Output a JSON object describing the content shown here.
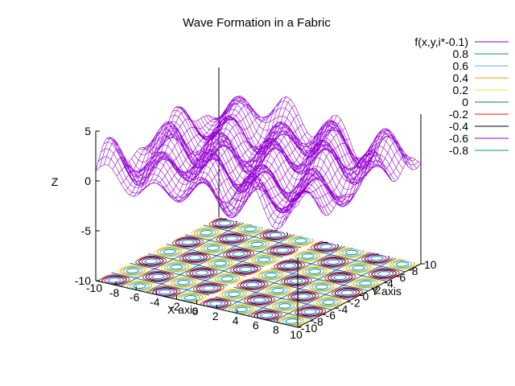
{
  "chart_data": {
    "type": "surface",
    "title": "Wave Formation in a Fabric",
    "xlabel": "X axis",
    "ylabel": "Y axis",
    "zlabel": "Z",
    "xlim": [
      -10,
      10
    ],
    "ylim": [
      -10,
      10
    ],
    "zlim": [
      -10,
      5
    ],
    "x_ticks": [
      "-10",
      "-8",
      "-6",
      "-4",
      "-2",
      "0",
      "2",
      "4",
      "6",
      "8",
      "10"
    ],
    "y_ticks": [
      "-10",
      "-8",
      "-6",
      "-4",
      "-2",
      "0",
      "2",
      "4",
      "6",
      "8",
      "10"
    ],
    "z_ticks": [
      "5",
      "0",
      "-5",
      "-10"
    ],
    "surface_color": "#9400d3",
    "series": [
      {
        "name": "f(x,y,i*-0.1)",
        "kind": "surface",
        "color": "#9400d3"
      }
    ],
    "contour_levels": [
      {
        "label": "0.8",
        "value": 0.8,
        "color": "#009e73"
      },
      {
        "label": "0.6",
        "value": 0.6,
        "color": "#56b4e9"
      },
      {
        "label": "0.4",
        "value": 0.4,
        "color": "#e69f00"
      },
      {
        "label": "0.2",
        "value": 0.2,
        "color": "#f0e442"
      },
      {
        "label": "0",
        "value": 0,
        "color": "#0072b2"
      },
      {
        "label": "-0.2",
        "value": -0.2,
        "color": "#e51e10"
      },
      {
        "label": "-0.4",
        "value": -0.4,
        "color": "#000000"
      },
      {
        "label": "-0.6",
        "value": -0.6,
        "color": "#9400d3"
      },
      {
        "label": "-0.8",
        "value": -0.8,
        "color": "#009e73"
      }
    ],
    "legend_position": "top-right",
    "grid": false
  }
}
